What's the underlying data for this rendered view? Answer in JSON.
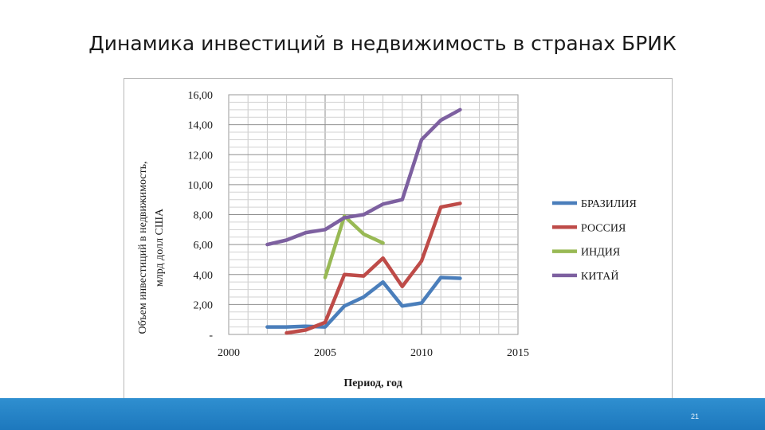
{
  "slide": {
    "title": "Динамика инвестиций в недвижимость в странах БРИК",
    "page_number": "21",
    "footer_color": "#2284c8"
  },
  "chart_data": {
    "type": "line",
    "title": "",
    "xlabel": "Период, год",
    "ylabel_line1": "Объем инвестиций в недвижимость,",
    "ylabel_line2": "млрд долл США",
    "xlim": [
      2000,
      2015
    ],
    "ylim": [
      0,
      16
    ],
    "x_ticks": [
      2000,
      2005,
      2010,
      2015
    ],
    "y_tick_labels": [
      "-",
      "2,00",
      "4,00",
      "6,00",
      "8,00",
      "10,00",
      "12,00",
      "14,00",
      "16,00"
    ],
    "y_tick_values": [
      0,
      2,
      4,
      6,
      8,
      10,
      12,
      14,
      16
    ],
    "grid": true,
    "legend_position": "right",
    "series": [
      {
        "name": "БРАЗИЛИЯ",
        "color": "#4a7ebb",
        "points": [
          [
            2002,
            0.5
          ],
          [
            2003,
            0.5
          ],
          [
            2004,
            0.55
          ],
          [
            2005,
            0.5
          ],
          [
            2006,
            1.9
          ],
          [
            2007,
            2.5
          ],
          [
            2008,
            3.5
          ],
          [
            2009,
            1.9
          ],
          [
            2010,
            2.1
          ],
          [
            2011,
            3.8
          ],
          [
            2012,
            3.75
          ]
        ]
      },
      {
        "name": "РОССИЯ",
        "color": "#be4b48",
        "points": [
          [
            2003,
            0.1
          ],
          [
            2004,
            0.3
          ],
          [
            2005,
            0.8
          ],
          [
            2006,
            4.0
          ],
          [
            2007,
            3.9
          ],
          [
            2008,
            5.1
          ],
          [
            2009,
            3.2
          ],
          [
            2010,
            4.9
          ],
          [
            2011,
            8.5
          ],
          [
            2012,
            8.75
          ]
        ]
      },
      {
        "name": "ИНДИЯ",
        "color": "#98b954",
        "points": [
          [
            2005,
            3.8
          ],
          [
            2006,
            7.9
          ],
          [
            2007,
            6.7
          ],
          [
            2008,
            6.1
          ]
        ]
      },
      {
        "name": "КИТАЙ",
        "color": "#7d60a0",
        "points": [
          [
            2002,
            6.0
          ],
          [
            2003,
            6.3
          ],
          [
            2004,
            6.8
          ],
          [
            2005,
            7.0
          ],
          [
            2006,
            7.8
          ],
          [
            2007,
            8.0
          ],
          [
            2008,
            8.7
          ],
          [
            2009,
            9.0
          ],
          [
            2010,
            13.0
          ],
          [
            2011,
            14.3
          ],
          [
            2012,
            15.0
          ]
        ]
      }
    ]
  }
}
